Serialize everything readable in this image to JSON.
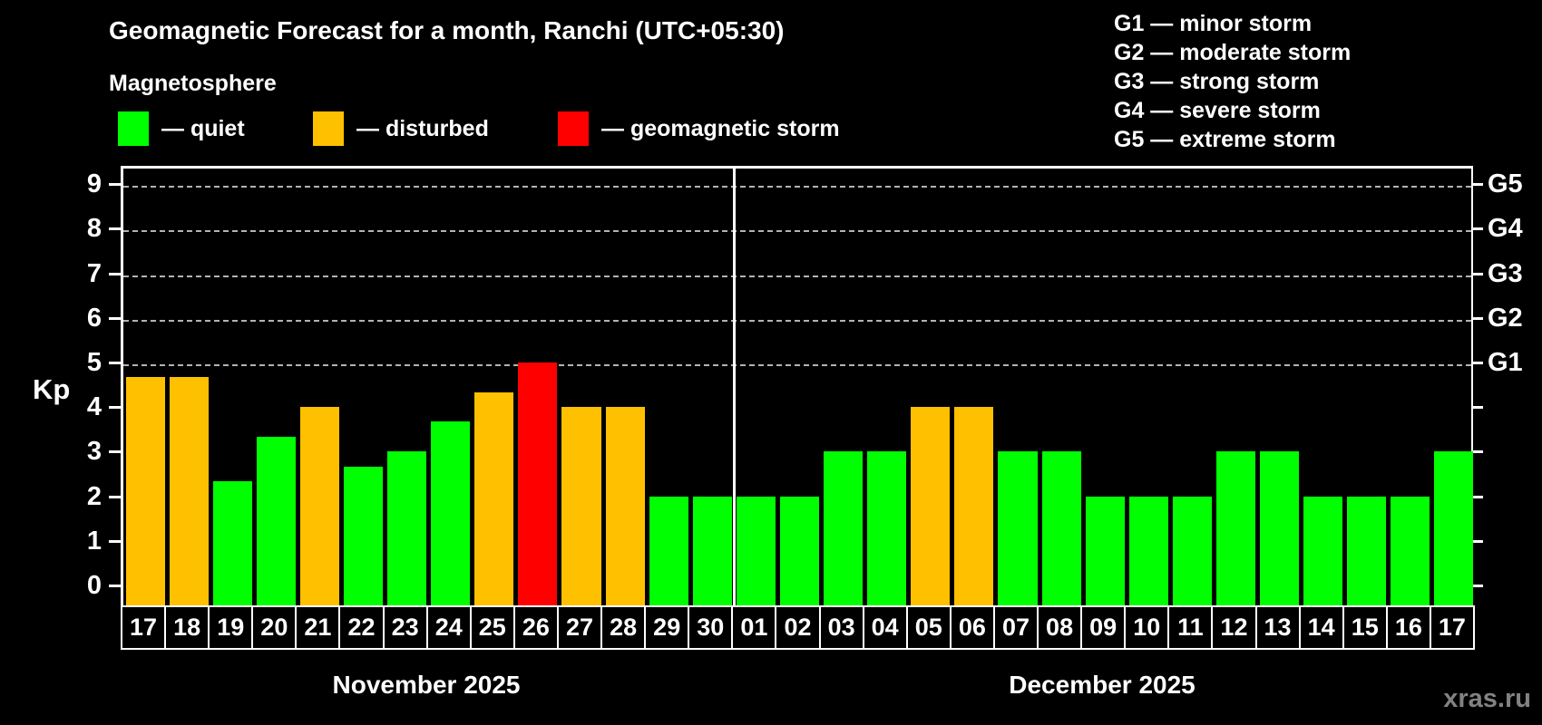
{
  "header": {
    "title": "Geomagnetic Forecast for a month, Ranchi (UTC+05:30)",
    "subtitle": "Magnetosphere"
  },
  "legend": {
    "items": [
      {
        "key": "quiet",
        "label": "— quiet",
        "color": "#00ff00"
      },
      {
        "key": "disturbed",
        "label": "— disturbed",
        "color": "#ffc000"
      },
      {
        "key": "storm",
        "label": "— geomagnetic storm",
        "color": "#ff0000"
      }
    ]
  },
  "g_legend": {
    "lines": [
      "G1 — minor storm",
      "G2 — moderate storm",
      "G3 — strong storm",
      "G4 — severe storm",
      "G5 — extreme storm"
    ]
  },
  "axes": {
    "y_label": "Kp",
    "y_ticks": [
      0,
      1,
      2,
      3,
      4,
      5,
      6,
      7,
      8,
      9
    ],
    "right_labels": [
      {
        "kp": 5,
        "text": "G1"
      },
      {
        "kp": 6,
        "text": "G2"
      },
      {
        "kp": 7,
        "text": "G3"
      },
      {
        "kp": 8,
        "text": "G4"
      },
      {
        "kp": 9,
        "text": "G5"
      }
    ]
  },
  "colors": {
    "quiet": "#00ff00",
    "disturbed": "#ffc000",
    "storm": "#ff0000",
    "background": "#000000",
    "text": "#ffffff",
    "grid": "#b3b3b3",
    "watermark": "#828282"
  },
  "watermark": "xras.ru",
  "chart_data": {
    "type": "bar",
    "title": "Geomagnetic Forecast for a month, Ranchi (UTC+05:30)",
    "ylabel": "Kp",
    "ylim": [
      0,
      9.5
    ],
    "grid_kp_levels": [
      5,
      6,
      7,
      8,
      9
    ],
    "months": [
      {
        "label": "November 2025",
        "days": [
          "17",
          "18",
          "19",
          "20",
          "21",
          "22",
          "23",
          "24",
          "25",
          "26",
          "27",
          "28",
          "29",
          "30"
        ],
        "values": [
          4.67,
          4.67,
          2.33,
          3.33,
          4,
          2.67,
          3,
          3.67,
          4.33,
          5,
          4,
          4,
          2,
          2
        ],
        "status": [
          "disturbed",
          "disturbed",
          "quiet",
          "quiet",
          "disturbed",
          "quiet",
          "quiet",
          "quiet",
          "disturbed",
          "storm",
          "disturbed",
          "disturbed",
          "quiet",
          "quiet"
        ]
      },
      {
        "label": "December 2025",
        "days": [
          "01",
          "02",
          "03",
          "04",
          "05",
          "06",
          "07",
          "08",
          "09",
          "10",
          "11",
          "12",
          "13",
          "14",
          "15",
          "16",
          "17"
        ],
        "values": [
          2,
          2,
          3,
          3,
          4,
          4,
          3,
          3,
          2,
          2,
          2,
          3,
          3,
          2,
          2,
          2,
          3
        ],
        "status": [
          "quiet",
          "quiet",
          "quiet",
          "quiet",
          "disturbed",
          "disturbed",
          "quiet",
          "quiet",
          "quiet",
          "quiet",
          "quiet",
          "quiet",
          "quiet",
          "quiet",
          "quiet",
          "quiet",
          "quiet"
        ]
      }
    ]
  }
}
